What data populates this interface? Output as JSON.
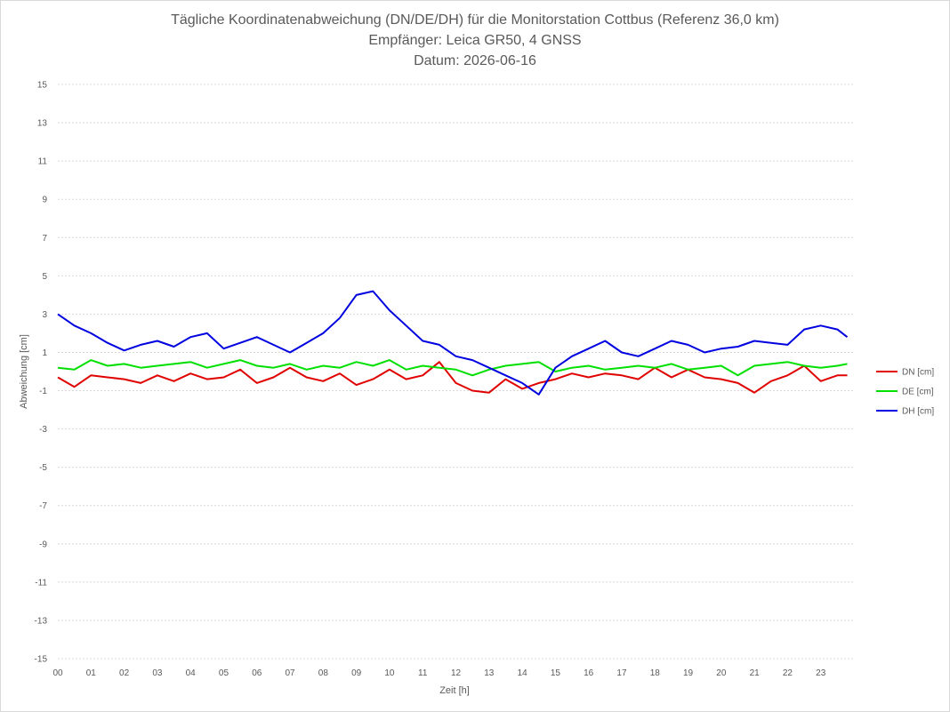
{
  "chart_data": {
    "type": "line",
    "title_lines": [
      "Tägliche Koordinatenabweichung (DN/DE/DH) für die Monitorstation Cottbus (Referenz 36,0 km)",
      "Empfänger: Leica GR50, 4 GNSS",
      "Datum: 2026-06-16"
    ],
    "xlabel": "Zeit [h]",
    "ylabel": "Abweichung [cm]",
    "x_tick_labels": [
      "00",
      "01",
      "02",
      "03",
      "04",
      "05",
      "06",
      "07",
      "08",
      "09",
      "10",
      "11",
      "12",
      "13",
      "14",
      "15",
      "16",
      "17",
      "18",
      "19",
      "20",
      "21",
      "22",
      "23"
    ],
    "y_ticks": [
      15,
      13,
      11,
      9,
      7,
      5,
      3,
      1,
      -1,
      -3,
      -5,
      -7,
      -9,
      -11,
      -13,
      -15
    ],
    "ylim": [
      -15,
      15
    ],
    "xlim": [
      0,
      24
    ],
    "grid": "horizontal dotted",
    "legend_position": "right",
    "x": [
      0,
      0.5,
      1,
      1.5,
      2,
      2.5,
      3,
      3.5,
      4,
      4.5,
      5,
      5.5,
      6,
      6.5,
      7,
      7.5,
      8,
      8.5,
      9,
      9.5,
      10,
      10.5,
      11,
      11.5,
      12,
      12.5,
      13,
      13.5,
      14,
      14.5,
      15,
      15.5,
      16,
      16.5,
      17,
      17.5,
      18,
      18.5,
      19,
      19.5,
      20,
      20.5,
      21,
      21.5,
      22,
      22.5,
      23,
      23.5,
      23.8
    ],
    "series": [
      {
        "name": "DN [cm]",
        "color": "#e00000",
        "values": [
          -0.3,
          -0.8,
          -0.2,
          -0.3,
          -0.4,
          -0.6,
          -0.2,
          -0.5,
          -0.1,
          -0.4,
          -0.3,
          0.1,
          -0.6,
          -0.3,
          0.2,
          -0.3,
          -0.5,
          -0.1,
          -0.7,
          -0.4,
          0.1,
          -0.4,
          -0.2,
          0.5,
          -0.6,
          -1.0,
          -1.1,
          -0.4,
          -0.9,
          -0.6,
          -0.4,
          -0.1,
          -0.3,
          -0.1,
          -0.2,
          -0.4,
          0.2,
          -0.3,
          0.1,
          -0.3,
          -0.4,
          -0.6,
          -1.1,
          -0.5,
          -0.2,
          0.3,
          -0.5,
          -0.2,
          -0.2
        ]
      },
      {
        "name": "DE [cm]",
        "color": "#00e000",
        "values": [
          0.2,
          0.1,
          0.6,
          0.3,
          0.4,
          0.2,
          0.3,
          0.4,
          0.5,
          0.2,
          0.4,
          0.6,
          0.3,
          0.2,
          0.4,
          0.1,
          0.3,
          0.2,
          0.5,
          0.3,
          0.6,
          0.1,
          0.3,
          0.2,
          0.1,
          -0.2,
          0.1,
          0.3,
          0.4,
          0.5,
          0.0,
          0.2,
          0.3,
          0.1,
          0.2,
          0.3,
          0.2,
          0.4,
          0.1,
          0.2,
          0.3,
          -0.2,
          0.3,
          0.4,
          0.5,
          0.3,
          0.2,
          0.3,
          0.4
        ]
      },
      {
        "name": "DH [cm]",
        "color": "#0000e0",
        "values": [
          3.0,
          2.4,
          2.0,
          1.5,
          1.1,
          1.4,
          1.6,
          1.3,
          1.8,
          2.0,
          1.2,
          1.5,
          1.8,
          1.4,
          1.0,
          1.5,
          2.0,
          2.8,
          4.0,
          4.2,
          3.2,
          2.4,
          1.6,
          1.4,
          0.8,
          0.6,
          0.2,
          -0.2,
          -0.6,
          -1.2,
          0.2,
          0.8,
          1.2,
          1.6,
          1.0,
          0.8,
          1.2,
          1.6,
          1.4,
          1.0,
          1.2,
          1.3,
          1.6,
          1.5,
          1.4,
          2.2,
          2.4,
          2.2,
          1.8
        ]
      }
    ]
  }
}
